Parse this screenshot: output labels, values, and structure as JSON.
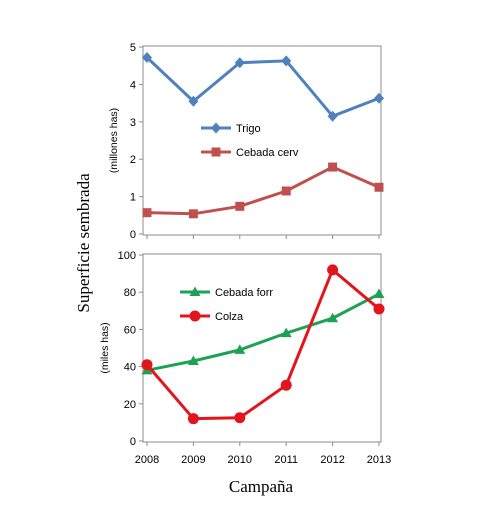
{
  "figure": {
    "ylabel": "Superficie sembrada",
    "xlabel": "Campaña"
  },
  "chart_data": [
    {
      "type": "line",
      "x": [
        2008,
        2009,
        2010,
        2011,
        2012,
        2013
      ],
      "ylabel": "(millones has)",
      "ylim": [
        0,
        5
      ],
      "yticks": [
        0,
        1,
        2,
        3,
        4,
        5
      ],
      "grid": false,
      "legend_position": "center",
      "series": [
        {
          "name": "Trigo",
          "values": [
            4.72,
            3.55,
            4.58,
            4.63,
            3.15,
            3.63
          ],
          "color": "#4F81BD",
          "marker": "diamond"
        },
        {
          "name": "Cebada cerv",
          "values": [
            0.57,
            0.54,
            0.74,
            1.15,
            1.79,
            1.25
          ],
          "color": "#C0504D",
          "marker": "square"
        }
      ]
    },
    {
      "type": "line",
      "x": [
        2008,
        2009,
        2010,
        2011,
        2012,
        2013
      ],
      "ylabel": "(miles has)",
      "xlabel": "Campaña",
      "ylim": [
        0,
        100
      ],
      "yticks": [
        0,
        20,
        40,
        60,
        80,
        100
      ],
      "grid": false,
      "legend_position": "top-left",
      "series": [
        {
          "name": "Cebada forr",
          "values": [
            38,
            43,
            49,
            58,
            66,
            79
          ],
          "color": "#1FA155",
          "marker": "triangle"
        },
        {
          "name": "Colza",
          "values": [
            41,
            12,
            12.5,
            30,
            92,
            71
          ],
          "color": "#E3151C",
          "marker": "circle"
        }
      ]
    }
  ]
}
